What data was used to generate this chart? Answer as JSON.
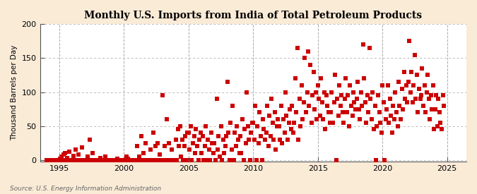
{
  "title": "Monthly U.S. Imports from India of Total Petroleum Products",
  "ylabel": "Thousand Barrels per Day",
  "source": "Source: U.S. Energy Information Administration",
  "figure_bg": "#faebd7",
  "axes_bg": "#ffffff",
  "dot_color": "#cc0000",
  "xlim": [
    1993.5,
    2026.5
  ],
  "ylim": [
    -2,
    200
  ],
  "yticks": [
    0,
    50,
    100,
    150,
    200
  ],
  "xticks": [
    1995,
    2000,
    2005,
    2010,
    2015,
    2020,
    2025
  ],
  "data_points": [
    [
      1994.0,
      0
    ],
    [
      1994.1,
      0
    ],
    [
      1994.2,
      0
    ],
    [
      1994.3,
      0
    ],
    [
      1994.4,
      0
    ],
    [
      1994.5,
      0
    ],
    [
      1994.6,
      0
    ],
    [
      1994.7,
      0
    ],
    [
      1994.8,
      0
    ],
    [
      1994.9,
      0
    ],
    [
      1995.0,
      0
    ],
    [
      1995.08,
      2
    ],
    [
      1995.17,
      5
    ],
    [
      1995.25,
      0
    ],
    [
      1995.33,
      8
    ],
    [
      1995.42,
      10
    ],
    [
      1995.5,
      0
    ],
    [
      1995.58,
      3
    ],
    [
      1995.67,
      0
    ],
    [
      1995.75,
      12
    ],
    [
      1995.83,
      0
    ],
    [
      1995.92,
      0
    ],
    [
      1996.0,
      0
    ],
    [
      1996.08,
      6
    ],
    [
      1996.17,
      0
    ],
    [
      1996.25,
      15
    ],
    [
      1996.33,
      0
    ],
    [
      1996.42,
      0
    ],
    [
      1996.5,
      8
    ],
    [
      1996.58,
      0
    ],
    [
      1996.67,
      0
    ],
    [
      1996.75,
      18
    ],
    [
      1996.83,
      0
    ],
    [
      1996.92,
      0
    ],
    [
      1997.0,
      0
    ],
    [
      1997.08,
      0
    ],
    [
      1997.17,
      5
    ],
    [
      1997.25,
      0
    ],
    [
      1997.33,
      30
    ],
    [
      1997.42,
      0
    ],
    [
      1997.5,
      0
    ],
    [
      1997.58,
      10
    ],
    [
      1997.67,
      0
    ],
    [
      1997.75,
      0
    ],
    [
      1997.83,
      0
    ],
    [
      1997.92,
      0
    ],
    [
      1998.0,
      0
    ],
    [
      1998.08,
      0
    ],
    [
      1998.17,
      3
    ],
    [
      1998.25,
      0
    ],
    [
      1998.33,
      0
    ],
    [
      1998.42,
      0
    ],
    [
      1998.5,
      0
    ],
    [
      1998.58,
      5
    ],
    [
      1998.67,
      0
    ],
    [
      1998.75,
      0
    ],
    [
      1998.83,
      0
    ],
    [
      1998.92,
      0
    ],
    [
      1999.0,
      0
    ],
    [
      1999.08,
      0
    ],
    [
      1999.17,
      0
    ],
    [
      1999.25,
      0
    ],
    [
      1999.33,
      0
    ],
    [
      1999.42,
      0
    ],
    [
      1999.5,
      2
    ],
    [
      1999.58,
      0
    ],
    [
      1999.67,
      0
    ],
    [
      1999.75,
      0
    ],
    [
      1999.83,
      0
    ],
    [
      1999.92,
      0
    ],
    [
      2000.0,
      0
    ],
    [
      2000.08,
      0
    ],
    [
      2000.17,
      5
    ],
    [
      2000.25,
      0
    ],
    [
      2000.33,
      2
    ],
    [
      2000.42,
      0
    ],
    [
      2000.5,
      0
    ],
    [
      2000.58,
      0
    ],
    [
      2000.67,
      0
    ],
    [
      2000.75,
      0
    ],
    [
      2000.83,
      0
    ],
    [
      2000.92,
      0
    ],
    [
      2001.0,
      20
    ],
    [
      2001.08,
      0
    ],
    [
      2001.17,
      5
    ],
    [
      2001.25,
      0
    ],
    [
      2001.33,
      35
    ],
    [
      2001.42,
      0
    ],
    [
      2001.5,
      10
    ],
    [
      2001.58,
      0
    ],
    [
      2001.67,
      25
    ],
    [
      2001.75,
      0
    ],
    [
      2001.83,
      0
    ],
    [
      2001.92,
      0
    ],
    [
      2002.0,
      0
    ],
    [
      2002.08,
      15
    ],
    [
      2002.17,
      0
    ],
    [
      2002.25,
      40
    ],
    [
      2002.33,
      0
    ],
    [
      2002.42,
      20
    ],
    [
      2002.5,
      0
    ],
    [
      2002.58,
      25
    ],
    [
      2002.67,
      0
    ],
    [
      2002.75,
      8
    ],
    [
      2002.83,
      0
    ],
    [
      2002.92,
      0
    ],
    [
      2003.0,
      95
    ],
    [
      2003.08,
      0
    ],
    [
      2003.17,
      20
    ],
    [
      2003.25,
      0
    ],
    [
      2003.33,
      60
    ],
    [
      2003.42,
      0
    ],
    [
      2003.5,
      25
    ],
    [
      2003.58,
      0
    ],
    [
      2003.67,
      15
    ],
    [
      2003.75,
      0
    ],
    [
      2003.83,
      0
    ],
    [
      2003.92,
      0
    ],
    [
      2004.0,
      30
    ],
    [
      2004.08,
      0
    ],
    [
      2004.17,
      45
    ],
    [
      2004.25,
      20
    ],
    [
      2004.33,
      50
    ],
    [
      2004.42,
      5
    ],
    [
      2004.5,
      30
    ],
    [
      2004.58,
      0
    ],
    [
      2004.67,
      20
    ],
    [
      2004.75,
      35
    ],
    [
      2004.83,
      0
    ],
    [
      2004.92,
      40
    ],
    [
      2005.0,
      40
    ],
    [
      2005.08,
      15
    ],
    [
      2005.17,
      50
    ],
    [
      2005.25,
      0
    ],
    [
      2005.33,
      25
    ],
    [
      2005.42,
      35
    ],
    [
      2005.5,
      10
    ],
    [
      2005.58,
      45
    ],
    [
      2005.67,
      20
    ],
    [
      2005.75,
      0
    ],
    [
      2005.83,
      30
    ],
    [
      2005.92,
      40
    ],
    [
      2006.0,
      10
    ],
    [
      2006.08,
      35
    ],
    [
      2006.17,
      0
    ],
    [
      2006.25,
      20
    ],
    [
      2006.33,
      50
    ],
    [
      2006.42,
      0
    ],
    [
      2006.5,
      30
    ],
    [
      2006.58,
      15
    ],
    [
      2006.67,
      0
    ],
    [
      2006.75,
      40
    ],
    [
      2006.83,
      25
    ],
    [
      2006.92,
      10
    ],
    [
      2007.0,
      25
    ],
    [
      2007.08,
      0
    ],
    [
      2007.17,
      90
    ],
    [
      2007.25,
      15
    ],
    [
      2007.33,
      35
    ],
    [
      2007.42,
      5
    ],
    [
      2007.5,
      50
    ],
    [
      2007.58,
      0
    ],
    [
      2007.67,
      30
    ],
    [
      2007.75,
      10
    ],
    [
      2007.83,
      20
    ],
    [
      2007.92,
      35
    ],
    [
      2008.0,
      115
    ],
    [
      2008.08,
      40
    ],
    [
      2008.17,
      0
    ],
    [
      2008.25,
      55
    ],
    [
      2008.33,
      15
    ],
    [
      2008.42,
      80
    ],
    [
      2008.5,
      0
    ],
    [
      2008.58,
      40
    ],
    [
      2008.67,
      20
    ],
    [
      2008.75,
      50
    ],
    [
      2008.83,
      30
    ],
    [
      2008.92,
      10
    ],
    [
      2009.0,
      35
    ],
    [
      2009.08,
      10
    ],
    [
      2009.17,
      60
    ],
    [
      2009.25,
      0
    ],
    [
      2009.33,
      45
    ],
    [
      2009.42,
      25
    ],
    [
      2009.5,
      100
    ],
    [
      2009.58,
      50
    ],
    [
      2009.67,
      30
    ],
    [
      2009.75,
      0
    ],
    [
      2009.83,
      40
    ],
    [
      2009.92,
      55
    ],
    [
      2010.0,
      55
    ],
    [
      2010.08,
      30
    ],
    [
      2010.17,
      80
    ],
    [
      2010.25,
      0
    ],
    [
      2010.33,
      50
    ],
    [
      2010.42,
      25
    ],
    [
      2010.5,
      70
    ],
    [
      2010.58,
      35
    ],
    [
      2010.67,
      0
    ],
    [
      2010.75,
      60
    ],
    [
      2010.83,
      45
    ],
    [
      2010.92,
      30
    ],
    [
      2011.0,
      40
    ],
    [
      2011.08,
      80
    ],
    [
      2011.17,
      20
    ],
    [
      2011.25,
      65
    ],
    [
      2011.33,
      35
    ],
    [
      2011.42,
      90
    ],
    [
      2011.5,
      55
    ],
    [
      2011.58,
      30
    ],
    [
      2011.67,
      70
    ],
    [
      2011.75,
      15
    ],
    [
      2011.83,
      50
    ],
    [
      2011.92,
      60
    ],
    [
      2012.0,
      50
    ],
    [
      2012.08,
      30
    ],
    [
      2012.17,
      80
    ],
    [
      2012.25,
      25
    ],
    [
      2012.33,
      60
    ],
    [
      2012.42,
      40
    ],
    [
      2012.5,
      100
    ],
    [
      2012.58,
      65
    ],
    [
      2012.67,
      30
    ],
    [
      2012.75,
      55
    ],
    [
      2012.83,
      75
    ],
    [
      2012.92,
      45
    ],
    [
      2013.0,
      80
    ],
    [
      2013.08,
      40
    ],
    [
      2013.17,
      55
    ],
    [
      2013.25,
      120
    ],
    [
      2013.33,
      70
    ],
    [
      2013.42,
      165
    ],
    [
      2013.5,
      30
    ],
    [
      2013.58,
      90
    ],
    [
      2013.67,
      50
    ],
    [
      2013.75,
      110
    ],
    [
      2013.83,
      60
    ],
    [
      2013.92,
      85
    ],
    [
      2014.0,
      150
    ],
    [
      2014.08,
      70
    ],
    [
      2014.17,
      100
    ],
    [
      2014.25,
      160
    ],
    [
      2014.33,
      80
    ],
    [
      2014.42,
      140
    ],
    [
      2014.5,
      55
    ],
    [
      2014.58,
      95
    ],
    [
      2014.67,
      130
    ],
    [
      2014.75,
      75
    ],
    [
      2014.83,
      100
    ],
    [
      2014.92,
      60
    ],
    [
      2015.0,
      110
    ],
    [
      2015.08,
      90
    ],
    [
      2015.17,
      65
    ],
    [
      2015.25,
      120
    ],
    [
      2015.33,
      85
    ],
    [
      2015.42,
      60
    ],
    [
      2015.5,
      100
    ],
    [
      2015.58,
      45
    ],
    [
      2015.67,
      95
    ],
    [
      2015.75,
      80
    ],
    [
      2015.83,
      70
    ],
    [
      2015.92,
      55
    ],
    [
      2016.0,
      70
    ],
    [
      2016.08,
      100
    ],
    [
      2016.17,
      55
    ],
    [
      2016.25,
      85
    ],
    [
      2016.33,
      125
    ],
    [
      2016.42,
      0
    ],
    [
      2016.5,
      90
    ],
    [
      2016.58,
      65
    ],
    [
      2016.67,
      110
    ],
    [
      2016.75,
      80
    ],
    [
      2016.83,
      95
    ],
    [
      2016.92,
      70
    ],
    [
      2017.0,
      55
    ],
    [
      2017.08,
      90
    ],
    [
      2017.17,
      120
    ],
    [
      2017.25,
      70
    ],
    [
      2017.33,
      95
    ],
    [
      2017.42,
      50
    ],
    [
      2017.5,
      110
    ],
    [
      2017.58,
      80
    ],
    [
      2017.67,
      65
    ],
    [
      2017.75,
      100
    ],
    [
      2017.83,
      85
    ],
    [
      2017.92,
      75
    ],
    [
      2018.0,
      90
    ],
    [
      2018.08,
      115
    ],
    [
      2018.17,
      75
    ],
    [
      2018.25,
      60
    ],
    [
      2018.33,
      100
    ],
    [
      2018.42,
      80
    ],
    [
      2018.5,
      170
    ],
    [
      2018.58,
      120
    ],
    [
      2018.67,
      85
    ],
    [
      2018.75,
      55
    ],
    [
      2018.83,
      95
    ],
    [
      2018.92,
      70
    ],
    [
      2019.0,
      165
    ],
    [
      2019.08,
      90
    ],
    [
      2019.17,
      60
    ],
    [
      2019.25,
      100
    ],
    [
      2019.33,
      45
    ],
    [
      2019.42,
      80
    ],
    [
      2019.5,
      0
    ],
    [
      2019.58,
      50
    ],
    [
      2019.67,
      95
    ],
    [
      2019.75,
      70
    ],
    [
      2019.83,
      55
    ],
    [
      2019.92,
      40
    ],
    [
      2020.0,
      110
    ],
    [
      2020.08,
      85
    ],
    [
      2020.17,
      0
    ],
    [
      2020.25,
      60
    ],
    [
      2020.33,
      75
    ],
    [
      2020.42,
      110
    ],
    [
      2020.5,
      55
    ],
    [
      2020.58,
      90
    ],
    [
      2020.67,
      65
    ],
    [
      2020.75,
      40
    ],
    [
      2020.83,
      80
    ],
    [
      2020.92,
      60
    ],
    [
      2021.0,
      100
    ],
    [
      2021.08,
      70
    ],
    [
      2021.17,
      50
    ],
    [
      2021.25,
      115
    ],
    [
      2021.33,
      80
    ],
    [
      2021.42,
      60
    ],
    [
      2021.5,
      105
    ],
    [
      2021.58,
      75
    ],
    [
      2021.67,
      130
    ],
    [
      2021.75,
      90
    ],
    [
      2021.83,
      110
    ],
    [
      2021.92,
      85
    ],
    [
      2022.0,
      115
    ],
    [
      2022.08,
      175
    ],
    [
      2022.17,
      100
    ],
    [
      2022.25,
      130
    ],
    [
      2022.33,
      85
    ],
    [
      2022.42,
      110
    ],
    [
      2022.5,
      155
    ],
    [
      2022.58,
      90
    ],
    [
      2022.67,
      125
    ],
    [
      2022.75,
      70
    ],
    [
      2022.83,
      105
    ],
    [
      2022.92,
      90
    ],
    [
      2023.0,
      95
    ],
    [
      2023.08,
      135
    ],
    [
      2023.17,
      80
    ],
    [
      2023.25,
      110
    ],
    [
      2023.33,
      70
    ],
    [
      2023.42,
      100
    ],
    [
      2023.5,
      125
    ],
    [
      2023.58,
      90
    ],
    [
      2023.67,
      60
    ],
    [
      2023.75,
      95
    ],
    [
      2023.83,
      75
    ],
    [
      2023.92,
      110
    ],
    [
      2024.0,
      45
    ],
    [
      2024.08,
      75
    ],
    [
      2024.17,
      95
    ],
    [
      2024.25,
      50
    ],
    [
      2024.33,
      90
    ],
    [
      2024.42,
      70
    ],
    [
      2024.5,
      55
    ],
    [
      2024.58,
      45
    ],
    [
      2024.67,
      95
    ],
    [
      2024.75,
      80
    ]
  ]
}
